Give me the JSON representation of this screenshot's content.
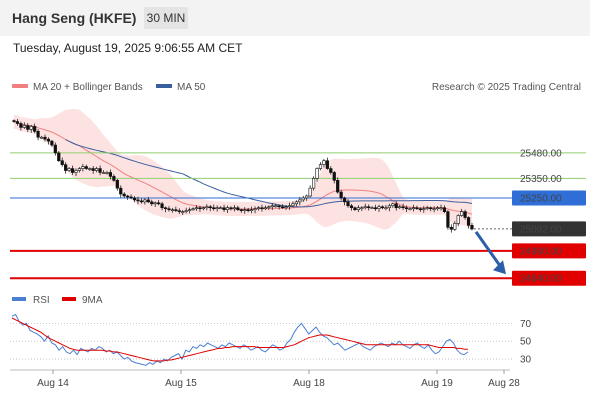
{
  "header": {
    "title": "Hang Seng (HKFE)",
    "timeframe": "30 MIN",
    "datetime": "Tuesday, August 19, 2025 9:06:55 AM CET"
  },
  "colors": {
    "ma20": "#f08080",
    "bollinger_band": "#fde2e2",
    "ma50": "#3a5f9f",
    "resistance": "#8fcf6f",
    "pivot": "#2e6ed6",
    "support": "#e00000",
    "price_tag": "#333333",
    "arrow": "#2b5fa8",
    "rsi": "#4a7fd4",
    "rsi_9ma": "#e00000"
  },
  "chart_data": [
    {
      "type": "candlestick",
      "legend": [
        {
          "name": "MA 20 + Bollinger Bands",
          "color": "#f08080"
        },
        {
          "name": "MA 50",
          "color": "#3a5f9f"
        }
      ],
      "watermark": "Research © 2025 Trading Central",
      "x_ticks": [
        "Aug 14",
        "Aug 15",
        "Aug 18",
        "Aug 19",
        "Aug 28"
      ],
      "ylim": [
        24780,
        25750
      ],
      "levels": [
        {
          "value": 25480.0,
          "label": "25480.00",
          "kind": "resistance"
        },
        {
          "value": 25350.0,
          "label": "25350.00",
          "kind": "resistance"
        },
        {
          "value": 25250.0,
          "label": "25250.00",
          "kind": "pivot"
        },
        {
          "value": 25092.0,
          "label": "25092.00",
          "kind": "last_price"
        },
        {
          "value": 24980.0,
          "label": "24980.00",
          "kind": "support"
        },
        {
          "value": 24840.0,
          "label": "24840.00",
          "kind": "support"
        }
      ],
      "forecast": {
        "from": 25092,
        "to": 24840,
        "direction": "down"
      },
      "close": [
        25640,
        25630,
        25610,
        25620,
        25600,
        25615,
        25590,
        25560,
        25560,
        25550,
        25540,
        25520,
        25480,
        25440,
        25420,
        25390,
        25400,
        25380,
        25390,
        25400,
        25410,
        25400,
        25400,
        25390,
        25400,
        25380,
        25380,
        25380,
        25360,
        25340,
        25300,
        25270,
        25260,
        25255,
        25250,
        25240,
        25235,
        25230,
        25240,
        25230,
        25220,
        25225,
        25220,
        25200,
        25195,
        25190,
        25190,
        25185,
        25180,
        25180,
        25185,
        25190,
        25195,
        25200,
        25195,
        25200,
        25205,
        25200,
        25195,
        25200,
        25200,
        25190,
        25200,
        25195,
        25200,
        25190,
        25185,
        25190,
        25185,
        25190,
        25195,
        25200,
        25195,
        25200,
        25205,
        25210,
        25210,
        25205,
        25200,
        25205,
        25210,
        25220,
        25230,
        25240,
        25250,
        25260,
        25300,
        25350,
        25400,
        25420,
        25440,
        25400,
        25380,
        25340,
        25280,
        25250,
        25230,
        25210,
        25200,
        25190,
        25200,
        25200,
        25205,
        25200,
        25200,
        25195,
        25205,
        25200,
        25200,
        25210,
        25220,
        25200,
        25205,
        25200,
        25195,
        25195,
        25200,
        25195,
        25190,
        25195,
        25200,
        25195,
        25195,
        25200,
        25200,
        25180,
        25100,
        25090,
        25120,
        25160,
        25180,
        25150,
        25110,
        25092
      ]
    },
    {
      "type": "line",
      "legend": [
        {
          "name": "RSI",
          "color": "#4a7fd4"
        },
        {
          "name": "9MA",
          "color": "#e00000"
        }
      ],
      "ylim": [
        20,
        85
      ],
      "y_ticks": [
        70,
        50,
        30
      ],
      "series": [
        {
          "name": "RSI",
          "values": [
            78,
            80,
            72,
            68,
            70,
            62,
            60,
            58,
            55,
            50,
            56,
            48,
            46,
            40,
            44,
            38,
            36,
            40,
            35,
            42,
            40,
            38,
            42,
            40,
            44,
            42,
            38,
            40,
            36,
            38,
            34,
            30,
            32,
            28,
            26,
            25,
            24,
            23,
            26,
            24,
            28,
            26,
            30,
            28,
            32,
            34,
            36,
            30,
            40,
            38,
            44,
            42,
            46,
            44,
            48,
            46,
            44,
            42,
            46,
            44,
            48,
            46,
            44,
            42,
            46,
            44,
            40,
            42,
            44,
            40,
            38,
            42,
            46,
            44,
            40,
            42,
            48,
            52,
            60,
            66,
            70,
            64,
            58,
            62,
            66,
            60,
            56,
            54,
            50,
            46,
            48,
            44,
            40,
            42,
            44,
            46,
            48,
            44,
            42,
            40,
            44,
            46,
            48,
            46,
            44,
            48,
            46,
            50,
            46,
            44,
            42,
            46,
            48,
            44,
            42,
            46,
            40,
            36,
            38,
            44,
            50,
            52,
            48,
            40,
            36,
            35,
            38
          ]
        },
        {
          "name": "9MA",
          "values": [
            76,
            74,
            72,
            70,
            68,
            66,
            64,
            62,
            60,
            57,
            54,
            52,
            50,
            48,
            46,
            44,
            42,
            41,
            40,
            40,
            40,
            40,
            40,
            40,
            40,
            40,
            39,
            39,
            38,
            38,
            37,
            36,
            35,
            34,
            33,
            32,
            31,
            30,
            29,
            28,
            28,
            28,
            28,
            29,
            29,
            30,
            31,
            32,
            33,
            34,
            35,
            36,
            37,
            38,
            39,
            40,
            41,
            42,
            42,
            43,
            43,
            44,
            44,
            44,
            44,
            44,
            44,
            44,
            43,
            43,
            43,
            43,
            43,
            43,
            43,
            43,
            44,
            45,
            46,
            48,
            50,
            52,
            54,
            55,
            56,
            57,
            57,
            57,
            56,
            55,
            54,
            53,
            52,
            51,
            50,
            49,
            48,
            47,
            46,
            46,
            46,
            46,
            46,
            46,
            46,
            46,
            46,
            46,
            46,
            46,
            46,
            46,
            46,
            46,
            46,
            46,
            45,
            44,
            43,
            43,
            43,
            43,
            43,
            42,
            42,
            41,
            41
          ]
        }
      ]
    }
  ]
}
